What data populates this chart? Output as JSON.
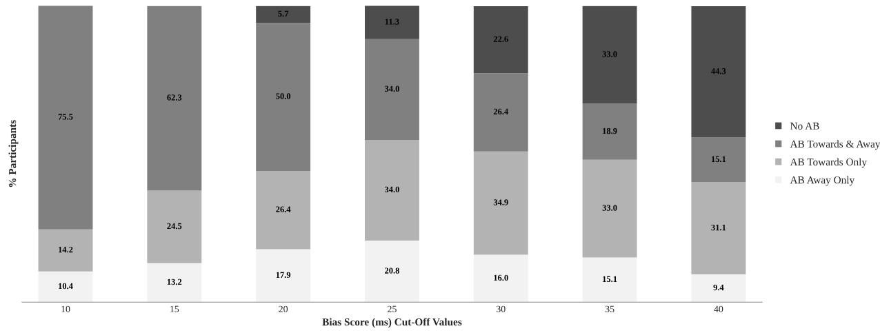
{
  "chart_data": {
    "type": "bar",
    "stacked": true,
    "xlabel": "Bias Score (ms) Cut-Off Values",
    "ylabel": "% Participants",
    "categories": [
      "10",
      "15",
      "20",
      "25",
      "30",
      "35",
      "40"
    ],
    "series": [
      {
        "name": "AB Away Only",
        "color": "#f2f2f2",
        "values": [
          10.4,
          13.2,
          17.9,
          20.8,
          16.0,
          15.1,
          9.4
        ],
        "value_labels": [
          "10.4",
          "13.2",
          "17.9",
          "20.8",
          "16.0",
          "15.1",
          "9.4"
        ]
      },
      {
        "name": "AB Towards Only",
        "color": "#b3b3b3",
        "values": [
          14.2,
          24.5,
          26.4,
          34.0,
          34.9,
          33.0,
          31.1
        ],
        "value_labels": [
          "14.2",
          "24.5",
          "26.4",
          "34.0",
          "34.9",
          "33.0",
          "31.1"
        ]
      },
      {
        "name": "AB Towards & Away",
        "color": "#808080",
        "values": [
          75.5,
          62.3,
          50.0,
          34.0,
          26.4,
          18.9,
          15.1
        ],
        "value_labels": [
          "75.5",
          "62.3",
          "50.0",
          "34.0",
          "26.4",
          "18.9",
          "15.1"
        ]
      },
      {
        "name": "No AB",
        "color": "#4d4d4d",
        "values": [
          null,
          null,
          5.7,
          11.3,
          22.6,
          33.0,
          44.3
        ],
        "value_labels": [
          null,
          null,
          "5.7",
          "11.3",
          "22.6",
          "33.0",
          "44.3"
        ]
      }
    ],
    "legend": "right",
    "tick_labels": "x",
    "grid": false
  }
}
